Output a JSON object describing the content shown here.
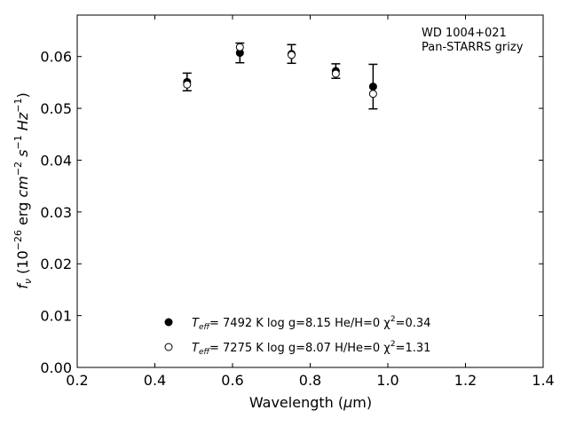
{
  "chart_data": {
    "type": "scatter",
    "annotation_lines": [
      "WD 1004+021",
      "Pan-STARRS grizy"
    ],
    "xlabel": "Wavelength (μm)",
    "ylabel": "f_ν (10^−26 erg cm^−2 s^−1 Hz^−1)",
    "xlim": [
      0.2,
      1.4
    ],
    "ylim": [
      0.0,
      0.068
    ],
    "xticks": [
      "0.2",
      "0.4",
      "0.6",
      "0.8",
      "1.0",
      "1.2",
      "1.4"
    ],
    "yticks": [
      "0.00",
      "0.01",
      "0.02",
      "0.03",
      "0.04",
      "0.05",
      "0.06"
    ],
    "grid": false,
    "legend_position": "bottom-center",
    "observed": {
      "x": [
        0.483,
        0.619,
        0.752,
        0.866,
        0.962
      ],
      "y": [
        0.0551,
        0.0607,
        0.0605,
        0.0572,
        0.0542
      ],
      "yerr": [
        0.0017,
        0.0019,
        0.0018,
        0.0014,
        0.0043
      ]
    },
    "series": [
      {
        "name": "Teff=  7492 K  log g=8.15  He/H=0  χ2=0.34",
        "marker": "filled-circle",
        "x": [
          0.483,
          0.619,
          0.752,
          0.866,
          0.962
        ],
        "y": [
          0.0551,
          0.0607,
          0.0605,
          0.0572,
          0.0542
        ]
      },
      {
        "name": "Teff=  7275 K  log g=8.07  H/He=0  χ2=1.31",
        "marker": "open-circle",
        "x": [
          0.483,
          0.619,
          0.752,
          0.866,
          0.962
        ],
        "y": [
          0.0546,
          0.0618,
          0.0603,
          0.0567,
          0.0528
        ]
      }
    ],
    "legend": [
      {
        "label_main": "T",
        "label_sub": "eff",
        "label_rest": "=  7492 K  log g=8.15  He/H=0  χ",
        "label_sup": "2",
        "label_tail": "=0.34"
      },
      {
        "label_main": "T",
        "label_sub": "eff",
        "label_rest": "=  7275 K  log g=8.07  H/He=0  χ",
        "label_sup": "2",
        "label_tail": "=1.31"
      }
    ]
  }
}
